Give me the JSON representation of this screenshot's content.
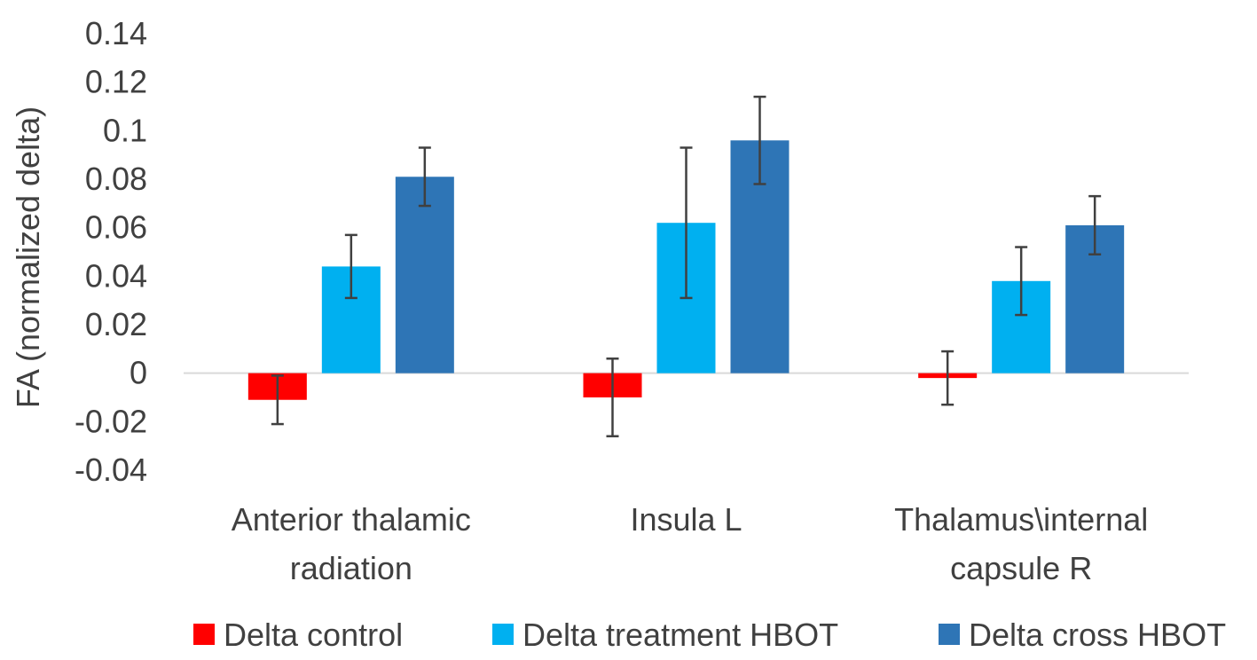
{
  "colors": {
    "background": "#ffffff",
    "text": "#404040",
    "zero_line": "#d9d9d9",
    "error_bar": "#404040"
  },
  "chart_data": {
    "type": "bar",
    "title": "",
    "xlabel": "",
    "ylabel": "FA (normalized delta)",
    "ylim": [
      -0.04,
      0.14
    ],
    "ytick_step": 0.02,
    "yticks": [
      "0.14",
      "0.12",
      "0.1",
      "0.08",
      "0.06",
      "0.04",
      "0.02",
      "0",
      "-0.02",
      "-0.04"
    ],
    "grid": false,
    "legend_position": "bottom",
    "categories": [
      [
        "Anterior thalamic",
        "radiation"
      ],
      [
        "Insula L"
      ],
      [
        "Thalamus\\internal",
        "capsule R"
      ]
    ],
    "series": [
      {
        "name": "Delta control",
        "color": "#ff0000",
        "values": [
          -0.011,
          -0.01,
          -0.002
        ],
        "errors": [
          0.01,
          0.016,
          0.011
        ]
      },
      {
        "name": "Delta treatment HBOT",
        "color": "#00b0f0",
        "values": [
          0.044,
          0.062,
          0.038
        ],
        "errors": [
          0.013,
          0.031,
          0.014
        ]
      },
      {
        "name": "Delta cross HBOT",
        "color": "#2e75b6",
        "values": [
          0.081,
          0.096,
          0.061
        ],
        "errors": [
          0.012,
          0.018,
          0.012
        ]
      }
    ]
  }
}
